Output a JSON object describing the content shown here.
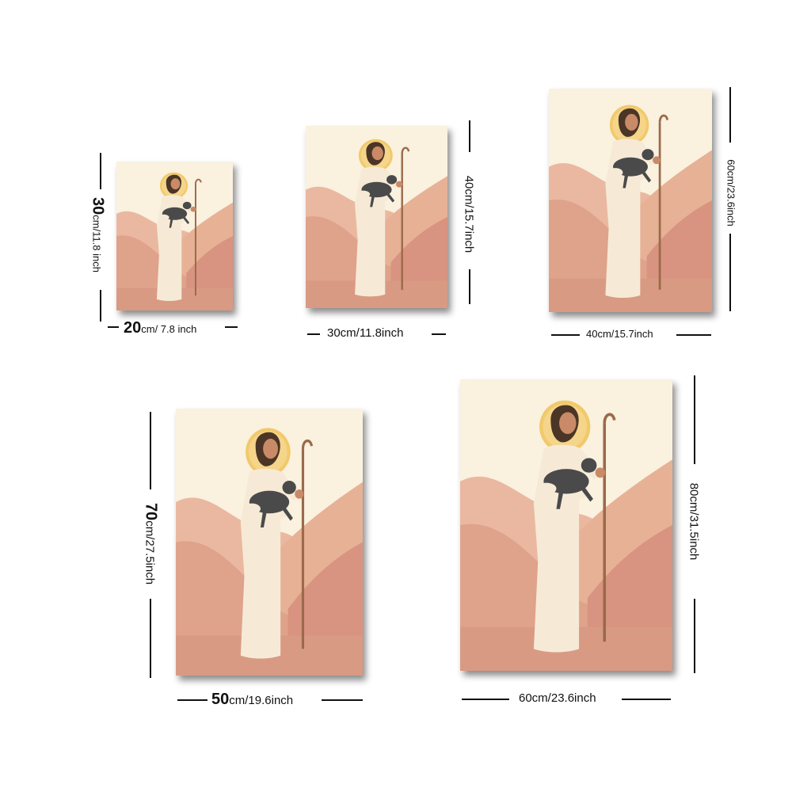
{
  "sizes": [
    {
      "width_value": "20",
      "width_unit": "cm/ 7.8 inch",
      "height_value": "30",
      "height_unit": "cm/11.8 inch"
    },
    {
      "width_label": "30cm/11.8inch",
      "height_label": "40cm/15.7inch"
    },
    {
      "width_label": "40cm/15.7inch",
      "height_label": "60cm/23.6inch"
    },
    {
      "width_value": "50",
      "width_unit": "cm/19.6inch",
      "height_value": "70",
      "height_unit": "cm/27.5inch"
    },
    {
      "width_label": "60cm/23.6inch",
      "height_label": "80cm/31.5inch"
    }
  ],
  "colors": {
    "sky": "#faf1df",
    "halo": "#f2c96a",
    "robe": "#f6ead7",
    "hill_light": "#eab8a0",
    "hill_mid": "#dfa28a",
    "hill_dark": "#d48f78",
    "ground": "#d99a83",
    "lamb": "#4a4a4a",
    "staff": "#9a6a4a",
    "hair": "#4b3526"
  }
}
